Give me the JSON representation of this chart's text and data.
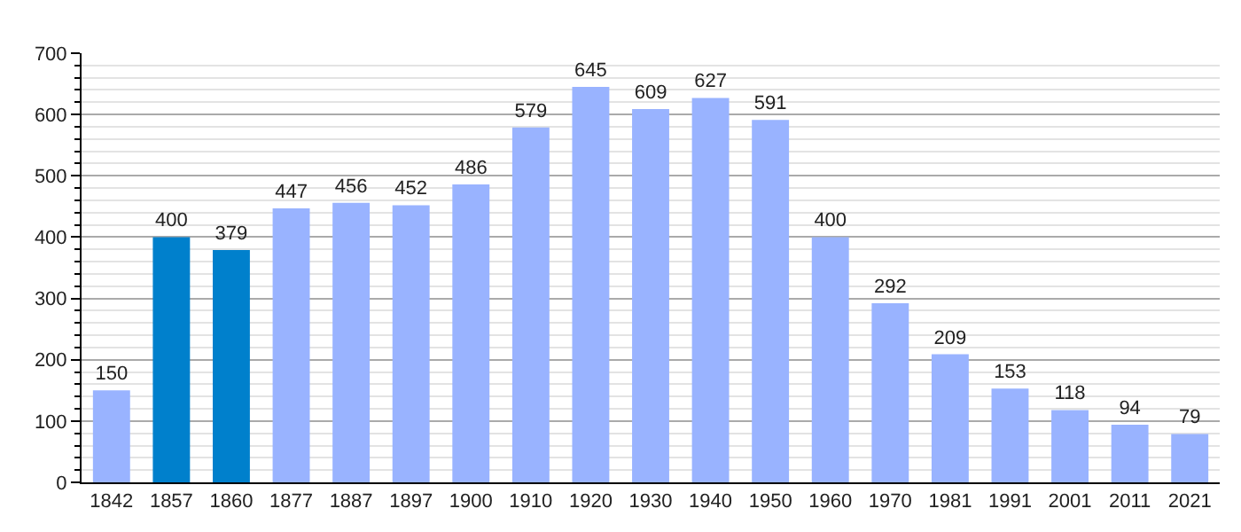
{
  "chart_data": {
    "type": "bar",
    "categories": [
      "1842",
      "1857",
      "1860",
      "1877",
      "1887",
      "1897",
      "1900",
      "1910",
      "1920",
      "1930",
      "1940",
      "1950",
      "1960",
      "1970",
      "1981",
      "1991",
      "2001",
      "2011",
      "2021"
    ],
    "values": [
      150,
      400,
      379,
      447,
      456,
      452,
      486,
      579,
      645,
      609,
      627,
      591,
      400,
      292,
      209,
      153,
      118,
      94,
      79
    ],
    "colors": [
      "#99b3ff",
      "#0080cc",
      "#0080cc",
      "#99b3ff",
      "#99b3ff",
      "#99b3ff",
      "#99b3ff",
      "#99b3ff",
      "#99b3ff",
      "#99b3ff",
      "#99b3ff",
      "#99b3ff",
      "#99b3ff",
      "#99b3ff",
      "#99b3ff",
      "#99b3ff",
      "#99b3ff",
      "#99b3ff",
      "#99b3ff"
    ],
    "ylim": [
      0,
      700
    ],
    "yticks": [
      0,
      100,
      200,
      300,
      400,
      500,
      600,
      700
    ],
    "grid": "y",
    "data_labels": true,
    "legend": false
  }
}
